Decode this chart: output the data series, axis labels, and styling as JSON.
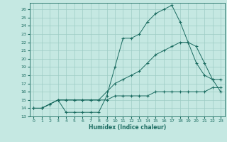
{
  "xlabel": "Humidex (Indice chaleur)",
  "ylabel": "",
  "xlim": [
    -0.5,
    23.5
  ],
  "ylim": [
    13,
    26.8
  ],
  "yticks": [
    13,
    14,
    15,
    16,
    17,
    18,
    19,
    20,
    21,
    22,
    23,
    24,
    25,
    26
  ],
  "xticks": [
    0,
    1,
    2,
    3,
    4,
    5,
    6,
    7,
    8,
    9,
    10,
    11,
    12,
    13,
    14,
    15,
    16,
    17,
    18,
    19,
    20,
    21,
    22,
    23
  ],
  "bg_color": "#c5e8e2",
  "grid_color": "#9dccc4",
  "line_color": "#1a6b60",
  "line1_x": [
    0,
    1,
    2,
    3,
    4,
    5,
    6,
    7,
    8,
    9,
    10,
    11,
    12,
    13,
    14,
    15,
    16,
    17,
    18,
    19,
    20,
    21,
    22,
    23
  ],
  "line1_y": [
    14,
    14,
    14.5,
    15,
    13.5,
    13.5,
    13.5,
    13.5,
    13.5,
    15.5,
    19.0,
    22.5,
    22.5,
    23.0,
    24.5,
    25.5,
    26.0,
    26.5,
    24.5,
    22.0,
    19.5,
    18.0,
    17.5,
    17.5
  ],
  "line2_x": [
    0,
    1,
    2,
    3,
    4,
    5,
    6,
    7,
    8,
    9,
    10,
    11,
    12,
    13,
    14,
    15,
    16,
    17,
    18,
    19,
    20,
    21,
    22,
    23
  ],
  "line2_y": [
    14,
    14,
    14.5,
    15,
    15,
    15,
    15,
    15,
    15,
    16.0,
    17.0,
    17.5,
    18.0,
    18.5,
    19.5,
    20.5,
    21.0,
    21.5,
    22.0,
    22.0,
    21.5,
    19.5,
    17.5,
    16.0
  ],
  "line3_x": [
    0,
    1,
    2,
    3,
    4,
    5,
    6,
    7,
    8,
    9,
    10,
    11,
    12,
    13,
    14,
    15,
    16,
    17,
    18,
    19,
    20,
    21,
    22,
    23
  ],
  "line3_y": [
    14,
    14,
    14.5,
    15,
    15,
    15,
    15,
    15,
    15,
    15.0,
    15.5,
    15.5,
    15.5,
    15.5,
    15.5,
    16.0,
    16.0,
    16.0,
    16.0,
    16.0,
    16.0,
    16.0,
    16.5,
    16.5
  ]
}
